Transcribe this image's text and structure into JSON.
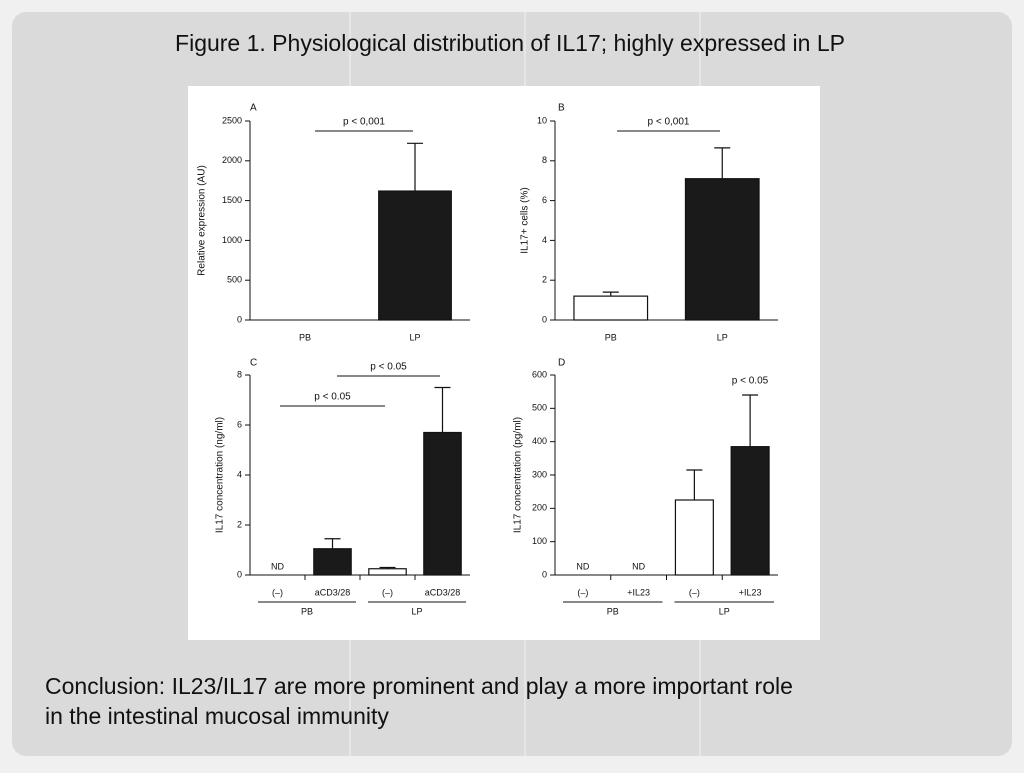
{
  "title": "Figure 1. Physiological distribution of IL17; highly expressed in LP",
  "conclusion": [
    "Conclusion: IL23/IL17 are more prominent and play a more important role",
    "in the intestinal mucosal immunity"
  ],
  "chart_data": [
    {
      "type": "bar",
      "panel": "A",
      "y_label": "Relative expression (AU)",
      "categories": [
        "PB",
        "LP"
      ],
      "values": [
        0,
        1620
      ],
      "errors": [
        null,
        600
      ],
      "colors": [
        "#ffffff",
        "#1a1a1a"
      ],
      "ylim": [
        0,
        2500
      ],
      "yticks": [
        0,
        500,
        1000,
        1500,
        2000,
        2500
      ],
      "annotations": [
        "p < 0,001"
      ]
    },
    {
      "type": "bar",
      "panel": "B",
      "y_label": "IL17+ cells (%)",
      "categories": [
        "PB",
        "LP"
      ],
      "values": [
        1.2,
        7.1
      ],
      "errors": [
        0.2,
        1.55
      ],
      "colors": [
        "#ffffff",
        "#1a1a1a"
      ],
      "ylim": [
        0,
        10
      ],
      "yticks": [
        0,
        2,
        4,
        6,
        8,
        10
      ],
      "annotations": [
        "p < 0,001"
      ]
    },
    {
      "type": "bar",
      "panel": "C",
      "y_label": "IL17 concentration (ng/ml)",
      "categories": [
        "(–)",
        "aCD3/28",
        "(–)",
        "aCD3/28"
      ],
      "groups": [
        "PB",
        "LP"
      ],
      "values": [
        null,
        1.05,
        0.25,
        5.7
      ],
      "errors": [
        null,
        0.4,
        0.05,
        1.8
      ],
      "value_labels": [
        "ND",
        null,
        null,
        null
      ],
      "colors": [
        "#1a1a1a",
        "#1a1a1a",
        "#ffffff",
        "#1a1a1a"
      ],
      "ylim": [
        0,
        8
      ],
      "yticks": [
        0,
        2,
        4,
        6,
        8
      ],
      "annotations": [
        "p < 0.05",
        "p < 0.05"
      ]
    },
    {
      "type": "bar",
      "panel": "D",
      "y_label": "IL17 concentration (pg/ml)",
      "categories": [
        "(–)",
        "+IL23",
        "(–)",
        "+IL23"
      ],
      "groups": [
        "PB",
        "LP"
      ],
      "values": [
        null,
        null,
        225,
        385
      ],
      "errors": [
        null,
        null,
        90,
        155
      ],
      "value_labels": [
        "ND",
        "ND",
        null,
        null
      ],
      "colors": [
        "#ffffff",
        "#1a1a1a",
        "#ffffff",
        "#1a1a1a"
      ],
      "ylim": [
        0,
        600
      ],
      "yticks": [
        0,
        100,
        200,
        300,
        400,
        500,
        600
      ],
      "annotations": [
        "p < 0.05"
      ]
    }
  ]
}
